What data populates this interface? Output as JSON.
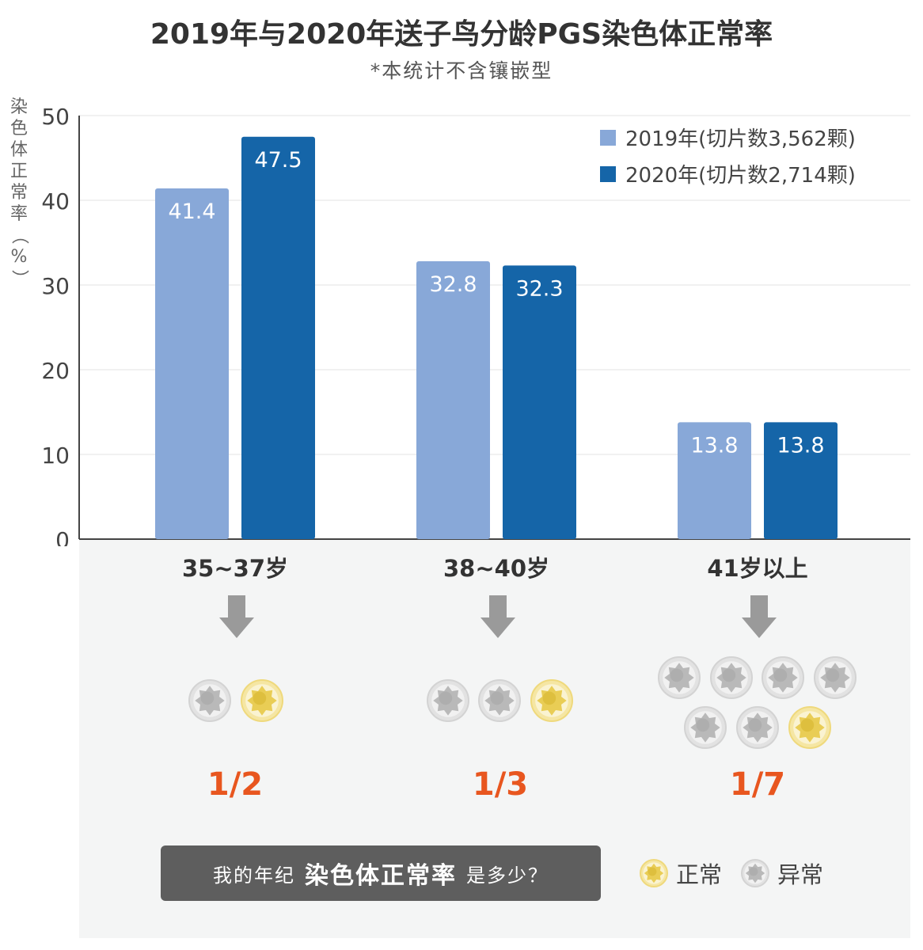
{
  "chart_data": {
    "type": "bar",
    "title": "2019年与2020年送子鸟分龄PGS染色体正常率",
    "subtitle": "*本统计不含镶嵌型",
    "ylabel": "染色体正常率（%）",
    "ylim": [
      0,
      50
    ],
    "yticks": [
      "0",
      "10",
      "20",
      "30",
      "40",
      "50"
    ],
    "grid": true,
    "legend_position": "top-right",
    "categories": [
      "35~37岁",
      "38~40岁",
      "41岁以上"
    ],
    "series": [
      {
        "name": "2019年(切片数3,562颗)",
        "color": "#88a8d8",
        "values": [
          41.4,
          32.8,
          13.8
        ],
        "labels": [
          "41.4",
          "32.8",
          "13.8"
        ]
      },
      {
        "name": "2020年(切片数2,714颗)",
        "color": "#1565a8",
        "values": [
          47.5,
          32.3,
          13.8
        ],
        "labels": [
          "47.5",
          "32.3",
          "13.8"
        ]
      }
    ]
  },
  "ratios": [
    {
      "text": "1/2",
      "abnormal": 1,
      "normal": 1
    },
    {
      "text": "1/3",
      "abnormal": 2,
      "normal": 1
    },
    {
      "text": "1/7",
      "abnormal": 6,
      "normal": 1
    }
  ],
  "question": {
    "prefix": "我的年纪",
    "highlight": "染色体正常率",
    "suffix": "是多少？"
  },
  "key": {
    "normal": "正常",
    "abnormal": "异常"
  },
  "colors": {
    "normal_embryo": "#f2dc78",
    "abnormal_embryo": "#cfcfcf",
    "ratio_text": "#e8561f",
    "panel_bg": "#f4f5f5",
    "question_bg": "#5e5e5e"
  }
}
